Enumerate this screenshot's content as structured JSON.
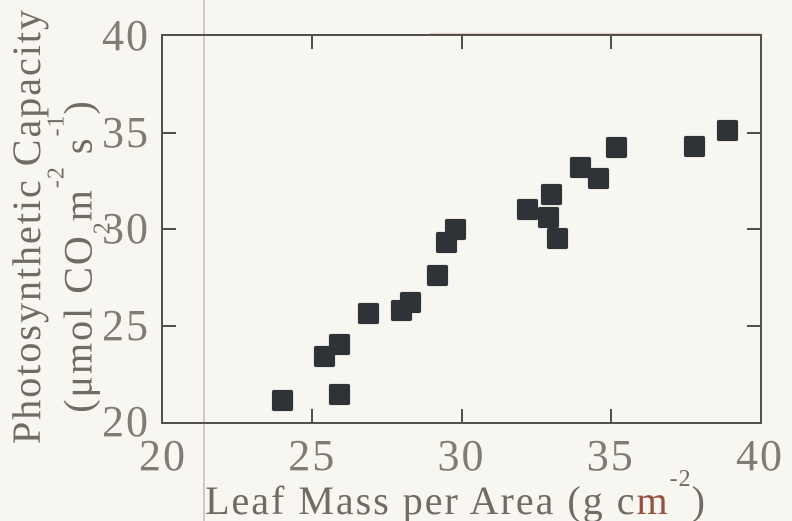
{
  "figure": {
    "palette": {
      "background": "#f8f6f1",
      "frame": "#53514c",
      "marker": "#2f3237",
      "tick_label": "#7e7c74",
      "axis_title": "#6e6c64",
      "red_fringe": "#96503f"
    }
  },
  "chart_data": {
    "type": "scatter",
    "title": "",
    "xlabel": "Leaf Mass per Area (g cm-2)",
    "ylabel": "Photosynthetic Capacity (umol CO2 m-2 s-1)",
    "xlim": [
      20,
      40
    ],
    "ylim": [
      20,
      40
    ],
    "xticks": [
      20,
      25,
      30,
      35,
      40
    ],
    "yticks": [
      20,
      25,
      30,
      35,
      40
    ],
    "grid": false,
    "legend": null,
    "marker": "filled-square",
    "points": [
      [
        24.0,
        21.1
      ],
      [
        25.9,
        21.4
      ],
      [
        25.4,
        23.4
      ],
      [
        25.9,
        24.0
      ],
      [
        26.9,
        25.6
      ],
      [
        28.0,
        25.8
      ],
      [
        28.3,
        26.2
      ],
      [
        29.2,
        27.6
      ],
      [
        29.5,
        29.3
      ],
      [
        29.8,
        30.0
      ],
      [
        32.2,
        31.0
      ],
      [
        33.0,
        31.8
      ],
      [
        32.9,
        30.6
      ],
      [
        33.2,
        29.5
      ],
      [
        34.0,
        33.2
      ],
      [
        34.6,
        32.6
      ],
      [
        35.2,
        34.2
      ],
      [
        37.8,
        34.3
      ],
      [
        38.9,
        35.1
      ]
    ],
    "xlabel_rich": {
      "main": "Leaf Mass per Area (g c",
      "red_char": "m",
      "sup": "-2",
      "close": ")"
    },
    "ylabel_rich": {
      "line1": "Photosynthetic Capacity",
      "l2_open": "(μmol CO",
      "l2_sub": "2",
      "l2_m": "m",
      "l2_sup1": "-2",
      "l2_s": " s",
      "l2_sup2": "-1",
      "l2_close": ")"
    }
  }
}
